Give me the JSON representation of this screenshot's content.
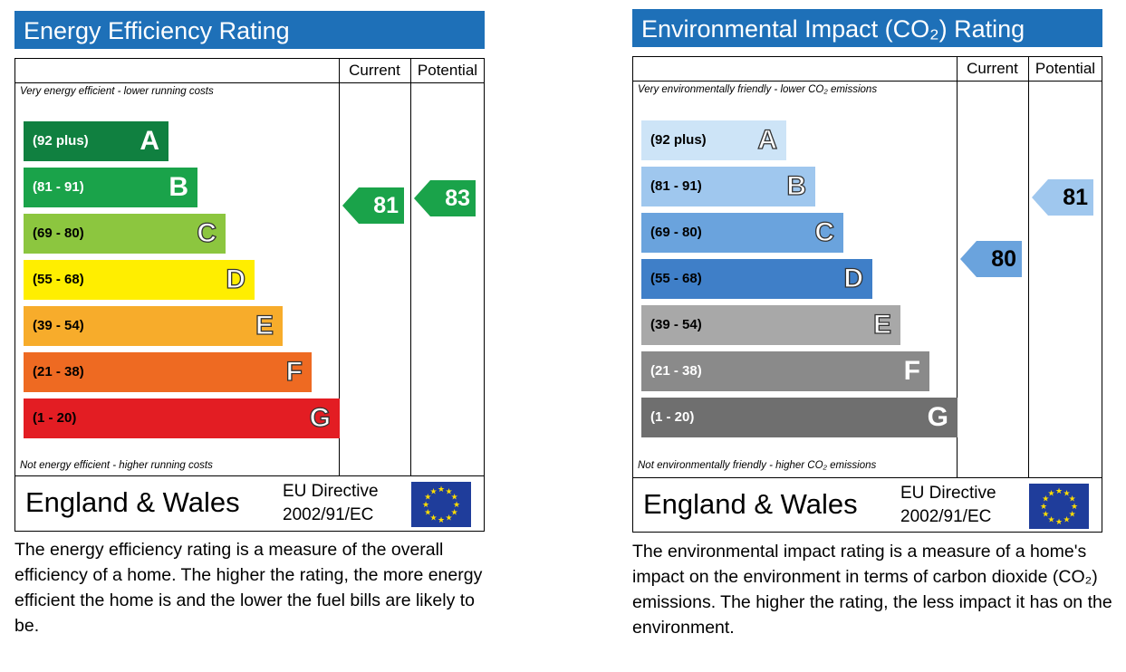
{
  "chart_data": [
    {
      "type": "bar",
      "title": "Energy Efficiency Rating",
      "column_headers": [
        "Current",
        "Potential"
      ],
      "top_note": "Very energy efficient - lower running costs",
      "bottom_note": "Not energy efficient - higher running costs",
      "bands": [
        {
          "range": "(92 plus)",
          "letter": "A",
          "color": "#108040",
          "text_color": "#ffffff"
        },
        {
          "range": "(81 - 91)",
          "letter": "B",
          "color": "#1aa34a",
          "text_color": "#ffffff"
        },
        {
          "range": "(69 - 80)",
          "letter": "C",
          "color": "#8cc63f",
          "text_color": "#000000"
        },
        {
          "range": "(55 - 68)",
          "letter": "D",
          "color": "#ffee00",
          "text_color": "#000000"
        },
        {
          "range": "(39 - 54)",
          "letter": "E",
          "color": "#f7ac2b",
          "text_color": "#000000"
        },
        {
          "range": "(21 - 38)",
          "letter": "F",
          "color": "#ee6a22",
          "text_color": "#000000"
        },
        {
          "range": "(1 - 20)",
          "letter": "G",
          "color": "#e31d23",
          "text_color": "#000000"
        }
      ],
      "current": {
        "value": 81,
        "band": "B",
        "color": "#1aa34a",
        "text_color": "#ffffff"
      },
      "potential": {
        "value": 83,
        "band": "B",
        "color": "#1aa34a",
        "text_color": "#ffffff"
      },
      "footer": {
        "region": "England & Wales",
        "directive_line1": "EU Directive",
        "directive_line2": "2002/91/EC"
      },
      "description": "The energy efficiency rating is a measure of the overall efficiency of a home. The higher the rating, the more energy efficient the home is and the lower the fuel bills are likely to be."
    },
    {
      "type": "bar",
      "title": "Environmental Impact (CO₂) Rating",
      "column_headers": [
        "Current",
        "Potential"
      ],
      "top_note": "Very environmentally friendly - lower CO₂ emissions",
      "bottom_note": "Not environmentally friendly - higher CO₂ emissions",
      "bands": [
        {
          "range": "(92 plus)",
          "letter": "A",
          "color": "#cde4f7",
          "text_color": "#000000"
        },
        {
          "range": "(81 - 91)",
          "letter": "B",
          "color": "#9fc7ee",
          "text_color": "#000000"
        },
        {
          "range": "(69 - 80)",
          "letter": "C",
          "color": "#6aa3dd",
          "text_color": "#000000"
        },
        {
          "range": "(55 - 68)",
          "letter": "D",
          "color": "#3f7fc8",
          "text_color": "#000000"
        },
        {
          "range": "(39 - 54)",
          "letter": "E",
          "color": "#a8a8a8",
          "text_color": "#000000"
        },
        {
          "range": "(21 - 38)",
          "letter": "F",
          "color": "#8a8a8a",
          "text_color": "#ffffff"
        },
        {
          "range": "(1 - 20)",
          "letter": "G",
          "color": "#6f6f6f",
          "text_color": "#ffffff"
        }
      ],
      "current": {
        "value": 80,
        "band": "C",
        "color": "#6aa3dd",
        "text_color": "#000000"
      },
      "potential": {
        "value": 81,
        "band": "B",
        "color": "#9fc7ee",
        "text_color": "#000000"
      },
      "footer": {
        "region": "England & Wales",
        "directive_line1": "EU Directive",
        "directive_line2": "2002/91/EC"
      },
      "description": "The environmental impact rating is a measure of a home's impact on the environment in terms of carbon dioxide (CO₂) emissions. The higher the rating, the less impact it has on the environment."
    }
  ]
}
